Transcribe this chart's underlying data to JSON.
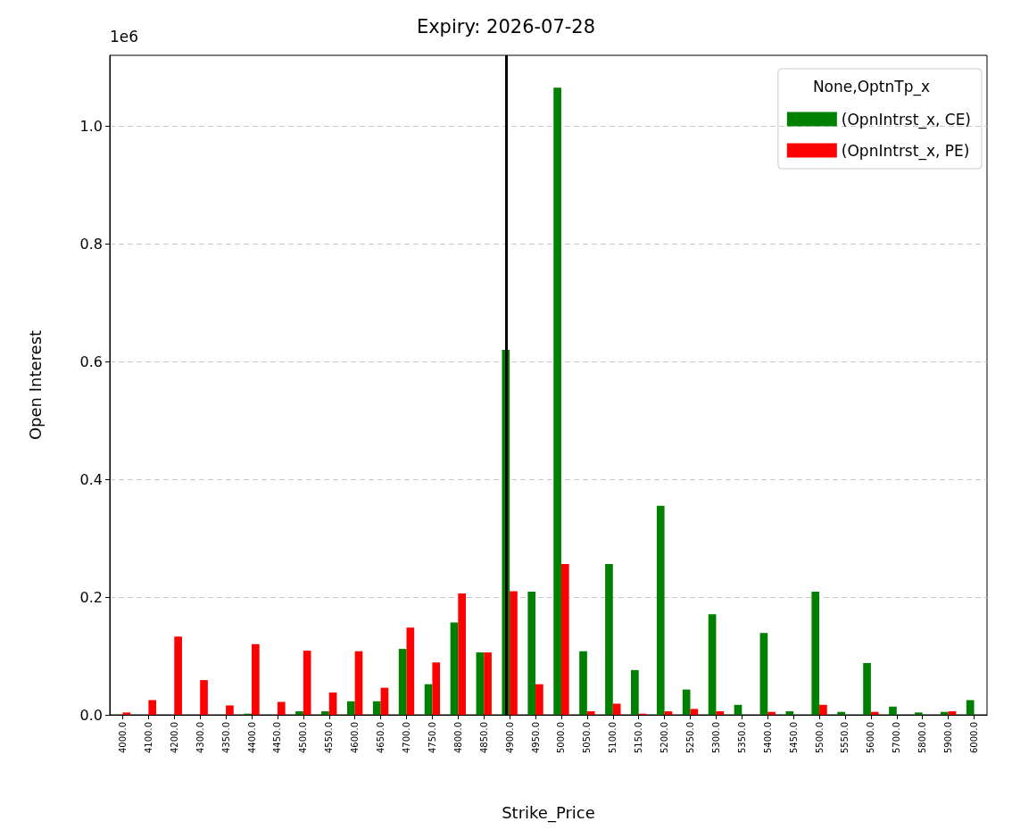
{
  "chart_data": {
    "type": "bar",
    "title": "Expiry: 2026-07-28",
    "xlabel": "Strike_Price",
    "ylabel": "Open Interest",
    "legend_title": "None,OptnTp_x",
    "annotations": [
      "1e6"
    ],
    "categories": [
      "4000.0",
      "4100.0",
      "4200.0",
      "4300.0",
      "4350.0",
      "4400.0",
      "4450.0",
      "4500.0",
      "4550.0",
      "4600.0",
      "4650.0",
      "4700.0",
      "4750.0",
      "4800.0",
      "4850.0",
      "4900.0",
      "4950.0",
      "5000.0",
      "5050.0",
      "5100.0",
      "5150.0",
      "5200.0",
      "5250.0",
      "5300.0",
      "5350.0",
      "5400.0",
      "5450.0",
      "5500.0",
      "5550.0",
      "5600.0",
      "5700.0",
      "5800.0",
      "5900.0",
      "6000.0"
    ],
    "series": [
      {
        "name": "(OpnIntrst_x, CE)",
        "color": "#008000",
        "values": [
          0,
          0,
          0,
          0,
          0,
          0.002,
          0,
          0.006,
          0.006,
          0.023,
          0.023,
          0.112,
          0.052,
          0.157,
          0.106,
          0.62,
          0.209,
          1.065,
          0.108,
          0.256,
          0.076,
          0.355,
          0.043,
          0.171,
          0.017,
          0.139,
          0.006,
          0.209,
          0.005,
          0.088,
          0.014,
          0.004,
          0.005,
          0.025
        ]
      },
      {
        "name": "(OpnIntrst_x, PE)",
        "color": "#ff0000",
        "values": [
          0.004,
          0.025,
          0.133,
          0.059,
          0.016,
          0.12,
          0.022,
          0.109,
          0.038,
          0.108,
          0.046,
          0.148,
          0.089,
          0.206,
          0.106,
          0.21,
          0.052,
          0.256,
          0.006,
          0.019,
          0.002,
          0.006,
          0.01,
          0.006,
          0,
          0.005,
          0,
          0.017,
          0,
          0.005,
          0,
          0,
          0.006,
          0
        ]
      }
    ],
    "ylim": [
      0,
      1.12
    ],
    "yticks": [
      {
        "value": 0,
        "label": "0.0"
      },
      {
        "value": 0.2,
        "label": "0.2"
      },
      {
        "value": 0.4,
        "label": "0.4"
      },
      {
        "value": 0.6,
        "label": "0.6"
      },
      {
        "value": 0.8,
        "label": "0.8"
      },
      {
        "value": 1.0,
        "label": "1.0"
      }
    ],
    "ref_lines": [
      {
        "axis": "x",
        "value": "4900.0",
        "label": null,
        "color": "#000000"
      }
    ],
    "grid": "y",
    "legend": "top right"
  }
}
